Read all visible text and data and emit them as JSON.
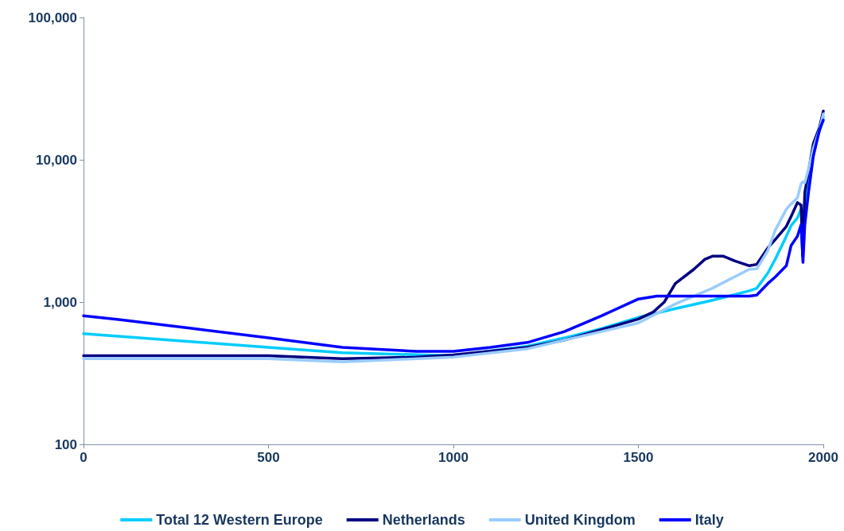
{
  "chart_data": {
    "type": "line",
    "xlim": [
      0,
      2000
    ],
    "xticks": [
      0,
      500,
      1000,
      1500,
      2000
    ],
    "ylim": [
      100,
      100000
    ],
    "yticks": [
      {
        "value": 100,
        "label": "100"
      },
      {
        "value": 1000,
        "label": "1,000"
      },
      {
        "value": 10000,
        "label": "10,000"
      },
      {
        "value": 100000,
        "label": "100,000"
      }
    ],
    "log": "y",
    "grid": false,
    "legend": "bottom",
    "marker": "none",
    "line_style": "solid",
    "series": [
      {
        "name": "Total 12 Western Europe",
        "color": "#00ccff",
        "x": [
          0,
          500,
          700,
          1000,
          1200,
          1300,
          1400,
          1500,
          1600,
          1700,
          1800,
          1820,
          1850,
          1870,
          1900,
          1913,
          1930,
          1940,
          1945,
          1950,
          1960,
          1973,
          1990,
          2000
        ],
        "values": [
          600,
          480,
          440,
          420,
          490,
          560,
          650,
          780,
          900,
          1030,
          1200,
          1250,
          1600,
          2000,
          2900,
          3450,
          3900,
          4500,
          3500,
          4600,
          6900,
          12000,
          16000,
          20000
        ]
      },
      {
        "name": "Netherlands",
        "color": "#000080",
        "x": [
          0,
          500,
          700,
          900,
          1000,
          1200,
          1300,
          1400,
          1500,
          1540,
          1570,
          1600,
          1650,
          1680,
          1700,
          1730,
          1760,
          1800,
          1820,
          1850,
          1870,
          1900,
          1913,
          1930,
          1940,
          1944,
          1945,
          1950,
          1960,
          1973,
          1990,
          2000
        ],
        "values": [
          420,
          420,
          400,
          410,
          425,
          480,
          540,
          640,
          760,
          850,
          1000,
          1350,
          1700,
          2000,
          2100,
          2100,
          1950,
          1800,
          1840,
          2400,
          2750,
          3400,
          4000,
          5000,
          4800,
          2100,
          2700,
          5900,
          8300,
          13000,
          17000,
          22000
        ]
      },
      {
        "name": "United Kingdom",
        "color": "#99ccff",
        "x": [
          0,
          500,
          700,
          1000,
          1200,
          1300,
          1400,
          1500,
          1600,
          1700,
          1800,
          1820,
          1850,
          1870,
          1900,
          1913,
          1930,
          1940,
          1945,
          1950,
          1960,
          1973,
          1990,
          2000
        ],
        "values": [
          400,
          400,
          380,
          410,
          470,
          540,
          620,
          714,
          970,
          1250,
          1700,
          1710,
          2300,
          3200,
          4500,
          4900,
          5400,
          6800,
          7000,
          6900,
          8600,
          12000,
          16400,
          21000
        ]
      },
      {
        "name": "Italy",
        "color": "#0000ff",
        "x": [
          0,
          100,
          300,
          500,
          700,
          900,
          1000,
          1100,
          1200,
          1300,
          1400,
          1500,
          1550,
          1600,
          1700,
          1800,
          1820,
          1850,
          1870,
          1900,
          1913,
          1930,
          1940,
          1945,
          1950,
          1960,
          1973,
          1990,
          2000
        ],
        "values": [
          800,
          750,
          650,
          560,
          480,
          450,
          450,
          480,
          520,
          620,
          800,
          1050,
          1100,
          1100,
          1100,
          1100,
          1120,
          1350,
          1500,
          1800,
          2500,
          2900,
          3500,
          1900,
          3500,
          5900,
          10600,
          16300,
          19000
        ]
      }
    ]
  }
}
